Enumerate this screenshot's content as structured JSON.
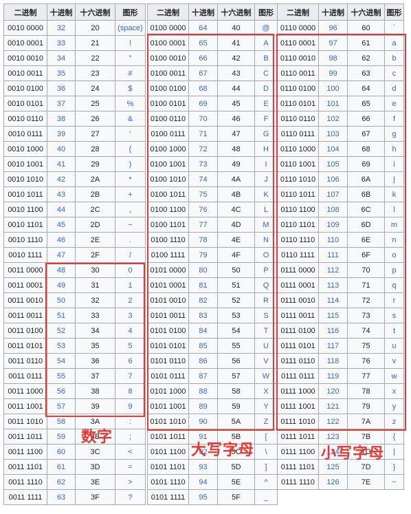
{
  "headers": [
    "二进制",
    "十进制",
    "十六进制",
    "图形"
  ],
  "tables": [
    {
      "rows": [
        [
          "0010 0000",
          "32",
          "20",
          "(space)"
        ],
        [
          "0010 0001",
          "33",
          "21",
          "!"
        ],
        [
          "0010 0010",
          "34",
          "22",
          "\""
        ],
        [
          "0010 0011",
          "35",
          "23",
          "#"
        ],
        [
          "0010 0100",
          "36",
          "24",
          "$"
        ],
        [
          "0010 0101",
          "37",
          "25",
          "%"
        ],
        [
          "0010 0110",
          "38",
          "26",
          "&"
        ],
        [
          "0010 0111",
          "39",
          "27",
          "'"
        ],
        [
          "0010 1000",
          "40",
          "28",
          "("
        ],
        [
          "0010 1001",
          "41",
          "29",
          ")"
        ],
        [
          "0010 1010",
          "42",
          "2A",
          "*"
        ],
        [
          "0010 1011",
          "43",
          "2B",
          "+"
        ],
        [
          "0010 1100",
          "44",
          "2C",
          ","
        ],
        [
          "0010 1101",
          "45",
          "2D",
          "−"
        ],
        [
          "0010 1110",
          "46",
          "2E",
          "."
        ],
        [
          "0010 1111",
          "47",
          "2F",
          "/"
        ],
        [
          "0011 0000",
          "48",
          "30",
          "0"
        ],
        [
          "0011 0001",
          "49",
          "31",
          "1"
        ],
        [
          "0011 0010",
          "50",
          "32",
          "2"
        ],
        [
          "0011 0011",
          "51",
          "33",
          "3"
        ],
        [
          "0011 0100",
          "52",
          "34",
          "4"
        ],
        [
          "0011 0101",
          "53",
          "35",
          "5"
        ],
        [
          "0011 0110",
          "54",
          "36",
          "6"
        ],
        [
          "0011 0111",
          "55",
          "37",
          "7"
        ],
        [
          "0011 1000",
          "56",
          "38",
          "8"
        ],
        [
          "0011 1001",
          "57",
          "39",
          "9"
        ],
        [
          "0011 1010",
          "58",
          "3A",
          ":"
        ],
        [
          "0011 1011",
          "59",
          "3B",
          ";"
        ],
        [
          "0011 1100",
          "60",
          "3C",
          "<"
        ],
        [
          "0011 1101",
          "61",
          "3D",
          "="
        ],
        [
          "0011 1110",
          "62",
          "3E",
          ">"
        ],
        [
          "0011 1111",
          "63",
          "3F",
          "?"
        ]
      ]
    },
    {
      "rows": [
        [
          "0100 0000",
          "64",
          "40",
          "@"
        ],
        [
          "0100 0001",
          "65",
          "41",
          "A"
        ],
        [
          "0100 0010",
          "66",
          "42",
          "B"
        ],
        [
          "0100 0011",
          "67",
          "43",
          "C"
        ],
        [
          "0100 0100",
          "68",
          "44",
          "D"
        ],
        [
          "0100 0101",
          "69",
          "45",
          "E"
        ],
        [
          "0100 0110",
          "70",
          "46",
          "F"
        ],
        [
          "0100 0111",
          "71",
          "47",
          "G"
        ],
        [
          "0100 1000",
          "72",
          "48",
          "H"
        ],
        [
          "0100 1001",
          "73",
          "49",
          "I"
        ],
        [
          "0100 1010",
          "74",
          "4A",
          "J"
        ],
        [
          "0100 1011",
          "75",
          "4B",
          "K"
        ],
        [
          "0100 1100",
          "76",
          "4C",
          "L"
        ],
        [
          "0100 1101",
          "77",
          "4D",
          "M"
        ],
        [
          "0100 1110",
          "78",
          "4E",
          "N"
        ],
        [
          "0100 1111",
          "79",
          "4F",
          "O"
        ],
        [
          "0101 0000",
          "80",
          "50",
          "P"
        ],
        [
          "0101 0001",
          "81",
          "51",
          "Q"
        ],
        [
          "0101 0010",
          "82",
          "52",
          "R"
        ],
        [
          "0101 0011",
          "83",
          "53",
          "S"
        ],
        [
          "0101 0100",
          "84",
          "54",
          "T"
        ],
        [
          "0101 0101",
          "85",
          "55",
          "U"
        ],
        [
          "0101 0110",
          "86",
          "56",
          "V"
        ],
        [
          "0101 0111",
          "87",
          "57",
          "W"
        ],
        [
          "0101 1000",
          "88",
          "58",
          "X"
        ],
        [
          "0101 1001",
          "89",
          "59",
          "Y"
        ],
        [
          "0101 1010",
          "90",
          "5A",
          "Z"
        ],
        [
          "0101 1011",
          "91",
          "5B",
          "["
        ],
        [
          "0101 1100",
          "92",
          "5C",
          "\\"
        ],
        [
          "0101 1101",
          "93",
          "5D",
          "]"
        ],
        [
          "0101 1110",
          "94",
          "5E",
          "^"
        ],
        [
          "0101 1111",
          "95",
          "5F",
          "_"
        ]
      ]
    },
    {
      "rows": [
        [
          "0110 0000",
          "96",
          "60",
          "`"
        ],
        [
          "0110 0001",
          "97",
          "61",
          "a"
        ],
        [
          "0110 0010",
          "98",
          "62",
          "b"
        ],
        [
          "0110 0011",
          "99",
          "63",
          "c"
        ],
        [
          "0110 0100",
          "100",
          "64",
          "d"
        ],
        [
          "0110 0101",
          "101",
          "65",
          "e"
        ],
        [
          "0110 0110",
          "102",
          "66",
          "f"
        ],
        [
          "0110 0111",
          "103",
          "67",
          "g"
        ],
        [
          "0110 1000",
          "104",
          "68",
          "h"
        ],
        [
          "0110 1001",
          "105",
          "69",
          "i"
        ],
        [
          "0110 1010",
          "106",
          "6A",
          "j"
        ],
        [
          "0110 1011",
          "107",
          "6B",
          "k"
        ],
        [
          "0110 1100",
          "108",
          "6C",
          "l"
        ],
        [
          "0110 1101",
          "109",
          "6D",
          "m"
        ],
        [
          "0110 1110",
          "110",
          "6E",
          "n"
        ],
        [
          "0110 1111",
          "111",
          "6F",
          "o"
        ],
        [
          "0111 0000",
          "112",
          "70",
          "p"
        ],
        [
          "0111 0001",
          "113",
          "71",
          "q"
        ],
        [
          "0111 0010",
          "114",
          "72",
          "r"
        ],
        [
          "0111 0011",
          "115",
          "73",
          "s"
        ],
        [
          "0111 0100",
          "116",
          "74",
          "t"
        ],
        [
          "0111 0101",
          "117",
          "75",
          "u"
        ],
        [
          "0111 0110",
          "118",
          "76",
          "v"
        ],
        [
          "0111 0111",
          "119",
          "77",
          "w"
        ],
        [
          "0111 1000",
          "120",
          "78",
          "x"
        ],
        [
          "0111 1001",
          "121",
          "79",
          "y"
        ],
        [
          "0111 1010",
          "122",
          "7A",
          "z"
        ],
        [
          "0111 1011",
          "123",
          "7B",
          "{"
        ],
        [
          "0111 1100",
          "124",
          "7C",
          "|"
        ],
        [
          "0111 1101",
          "125",
          "7D",
          "}"
        ],
        [
          "0111 1110",
          "126",
          "7E",
          "~"
        ]
      ]
    }
  ],
  "annotations": {
    "digits": "数字",
    "uppercase": "大写字母",
    "lowercase": "小写字母",
    "color": "#e53935"
  }
}
